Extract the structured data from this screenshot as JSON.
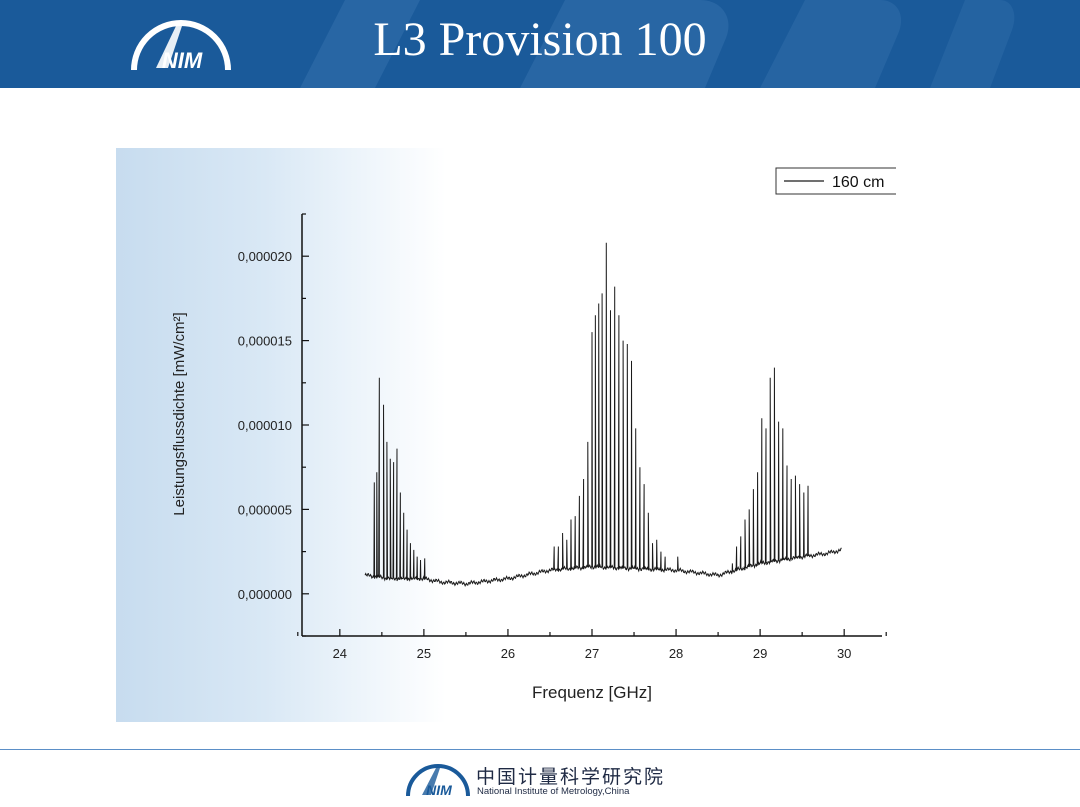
{
  "slide": {
    "title": "L3 Provision 100"
  },
  "logo": {
    "text": "NIM"
  },
  "footer": {
    "chinese_name": "中国计量科学研究院",
    "english_name": "National Institute of Metrology,China"
  },
  "colors": {
    "header": "#1a5a9a",
    "footer_line": "#5b8fc7",
    "plot_line": "#1a1a1a"
  },
  "chart_data": {
    "type": "line",
    "xlabel": "Frequenz [GHz]",
    "ylabel": "Leistungsflussdichte [mW/cm²]",
    "xlim": [
      23.55,
      30.45
    ],
    "ylim": [
      -2.5e-06,
      2.25e-05
    ],
    "x_ticks": [
      24,
      25,
      26,
      27,
      28,
      29,
      30
    ],
    "x_tick_labels": [
      "24",
      "25",
      "26",
      "27",
      "28",
      "29",
      "30"
    ],
    "y_ticks": [
      0,
      5e-06,
      1e-05,
      1.5e-05,
      2e-05
    ],
    "y_tick_labels": [
      "0,000000",
      "0,000005",
      "0,000010",
      "0,000015",
      "0,000020"
    ],
    "grid": false,
    "legend": {
      "position": "top-right",
      "entries": [
        "160 cm"
      ]
    },
    "series": [
      {
        "name": "160 cm",
        "baseline": [
          [
            24.3,
            1.1e-06
          ],
          [
            24.6,
            9e-07
          ],
          [
            25.0,
            9e-07
          ],
          [
            25.2,
            7e-07
          ],
          [
            25.5,
            6e-07
          ],
          [
            26.0,
            9e-07
          ],
          [
            26.5,
            1.4e-06
          ],
          [
            27.0,
            1.6e-06
          ],
          [
            27.5,
            1.5e-06
          ],
          [
            28.0,
            1.4e-06
          ],
          [
            28.5,
            1.1e-06
          ],
          [
            29.0,
            1.8e-06
          ],
          [
            29.5,
            2.2e-06
          ],
          [
            29.8,
            2.4e-06
          ],
          [
            29.97,
            2.6e-06
          ]
        ],
        "peaks": [
          [
            24.41,
            6.6e-06
          ],
          [
            24.44,
            7.2e-06
          ],
          [
            24.47,
            1.28e-05
          ],
          [
            24.52,
            1.12e-05
          ],
          [
            24.56,
            9e-06
          ],
          [
            24.6,
            8e-06
          ],
          [
            24.64,
            7.8e-06
          ],
          [
            24.68,
            8.6e-06
          ],
          [
            24.72,
            6e-06
          ],
          [
            24.76,
            4.8e-06
          ],
          [
            24.8,
            3.8e-06
          ],
          [
            24.84,
            3e-06
          ],
          [
            24.88,
            2.6e-06
          ],
          [
            24.92,
            2.2e-06
          ],
          [
            24.96,
            2e-06
          ],
          [
            25.01,
            2.1e-06
          ],
          [
            26.55,
            2.8e-06
          ],
          [
            26.6,
            2.8e-06
          ],
          [
            26.65,
            3.6e-06
          ],
          [
            26.7,
            3.2e-06
          ],
          [
            26.75,
            4.4e-06
          ],
          [
            26.8,
            4.6e-06
          ],
          [
            26.85,
            5.8e-06
          ],
          [
            26.9,
            6.8e-06
          ],
          [
            26.95,
            9e-06
          ],
          [
            27.0,
            1.55e-05
          ],
          [
            27.04,
            1.65e-05
          ],
          [
            27.08,
            1.72e-05
          ],
          [
            27.12,
            1.78e-05
          ],
          [
            27.17,
            2.08e-05
          ],
          [
            27.22,
            1.68e-05
          ],
          [
            27.27,
            1.82e-05
          ],
          [
            27.32,
            1.65e-05
          ],
          [
            27.37,
            1.5e-05
          ],
          [
            27.42,
            1.48e-05
          ],
          [
            27.47,
            1.38e-05
          ],
          [
            27.52,
            9.8e-06
          ],
          [
            27.57,
            7.5e-06
          ],
          [
            27.62,
            6.5e-06
          ],
          [
            27.67,
            4.8e-06
          ],
          [
            27.72,
            3e-06
          ],
          [
            27.77,
            3.2e-06
          ],
          [
            27.82,
            2.5e-06
          ],
          [
            27.87,
            2.2e-06
          ],
          [
            28.02,
            2.2e-06
          ],
          [
            28.67,
            1.8e-06
          ],
          [
            28.72,
            2.8e-06
          ],
          [
            28.77,
            3.4e-06
          ],
          [
            28.82,
            4.4e-06
          ],
          [
            28.87,
            5e-06
          ],
          [
            28.92,
            6.2e-06
          ],
          [
            28.97,
            7.2e-06
          ],
          [
            29.02,
            1.04e-05
          ],
          [
            29.07,
            9.8e-06
          ],
          [
            29.12,
            1.28e-05
          ],
          [
            29.17,
            1.34e-05
          ],
          [
            29.22,
            1.02e-05
          ],
          [
            29.27,
            9.8e-06
          ],
          [
            29.32,
            7.6e-06
          ],
          [
            29.37,
            6.8e-06
          ],
          [
            29.42,
            7e-06
          ],
          [
            29.47,
            6.5e-06
          ],
          [
            29.52,
            6e-06
          ],
          [
            29.57,
            6.4e-06
          ]
        ]
      }
    ]
  }
}
